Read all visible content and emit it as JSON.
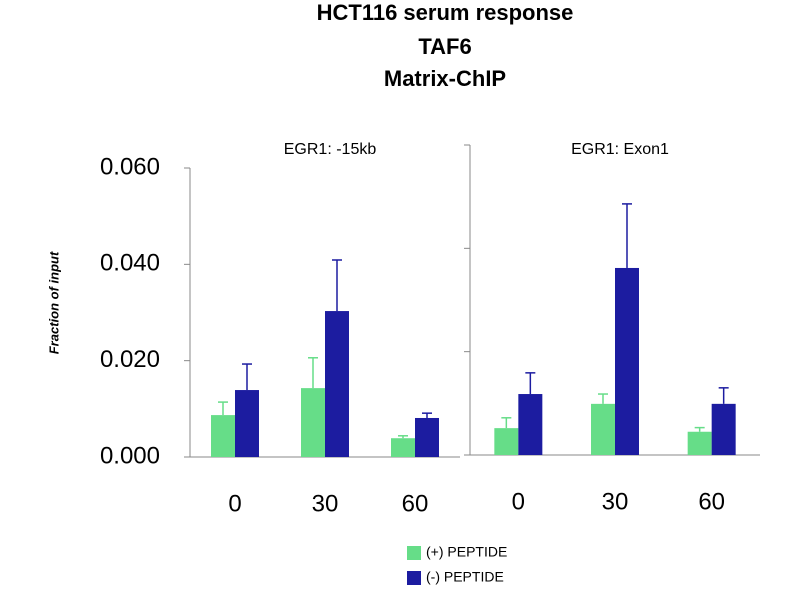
{
  "chart_data": {
    "type": "bar",
    "title": [
      "HCT116 serum response",
      "TAF6",
      "Matrix-ChIP"
    ],
    "ylabel": "Fraction of input",
    "categories": [
      "0",
      "30",
      "60"
    ],
    "ylim": [
      0,
      0.06
    ],
    "yticks": [
      {
        "value": 0,
        "label": "0.000"
      },
      {
        "value": 0.02,
        "label": "0.020"
      },
      {
        "value": 0.04,
        "label": "0.040"
      },
      {
        "value": 0.06,
        "label": "0.060"
      }
    ],
    "series": [
      {
        "name": "(+) PEPTIDE",
        "color": "#66dd88"
      },
      {
        "name": "(-) PEPTIDE",
        "color": "#1c1ca0"
      }
    ],
    "panels": [
      {
        "title": "EGR1: -15kb",
        "values": [
          [
            0.0087,
            0.0143,
            0.0039
          ],
          [
            0.0139,
            0.0303,
            0.0081
          ]
        ],
        "errors": [
          [
            0.0027,
            0.0063,
            0.0005
          ],
          [
            0.0054,
            0.0106,
            0.001
          ]
        ]
      },
      {
        "title": "EGR1: Exon1",
        "values": [
          [
            0.0052,
            0.0099,
            0.0045
          ],
          [
            0.0118,
            0.0362,
            0.0099
          ]
        ],
        "errors": [
          [
            0.002,
            0.0019,
            0.0008
          ],
          [
            0.0041,
            0.0124,
            0.0031
          ]
        ]
      }
    ]
  }
}
